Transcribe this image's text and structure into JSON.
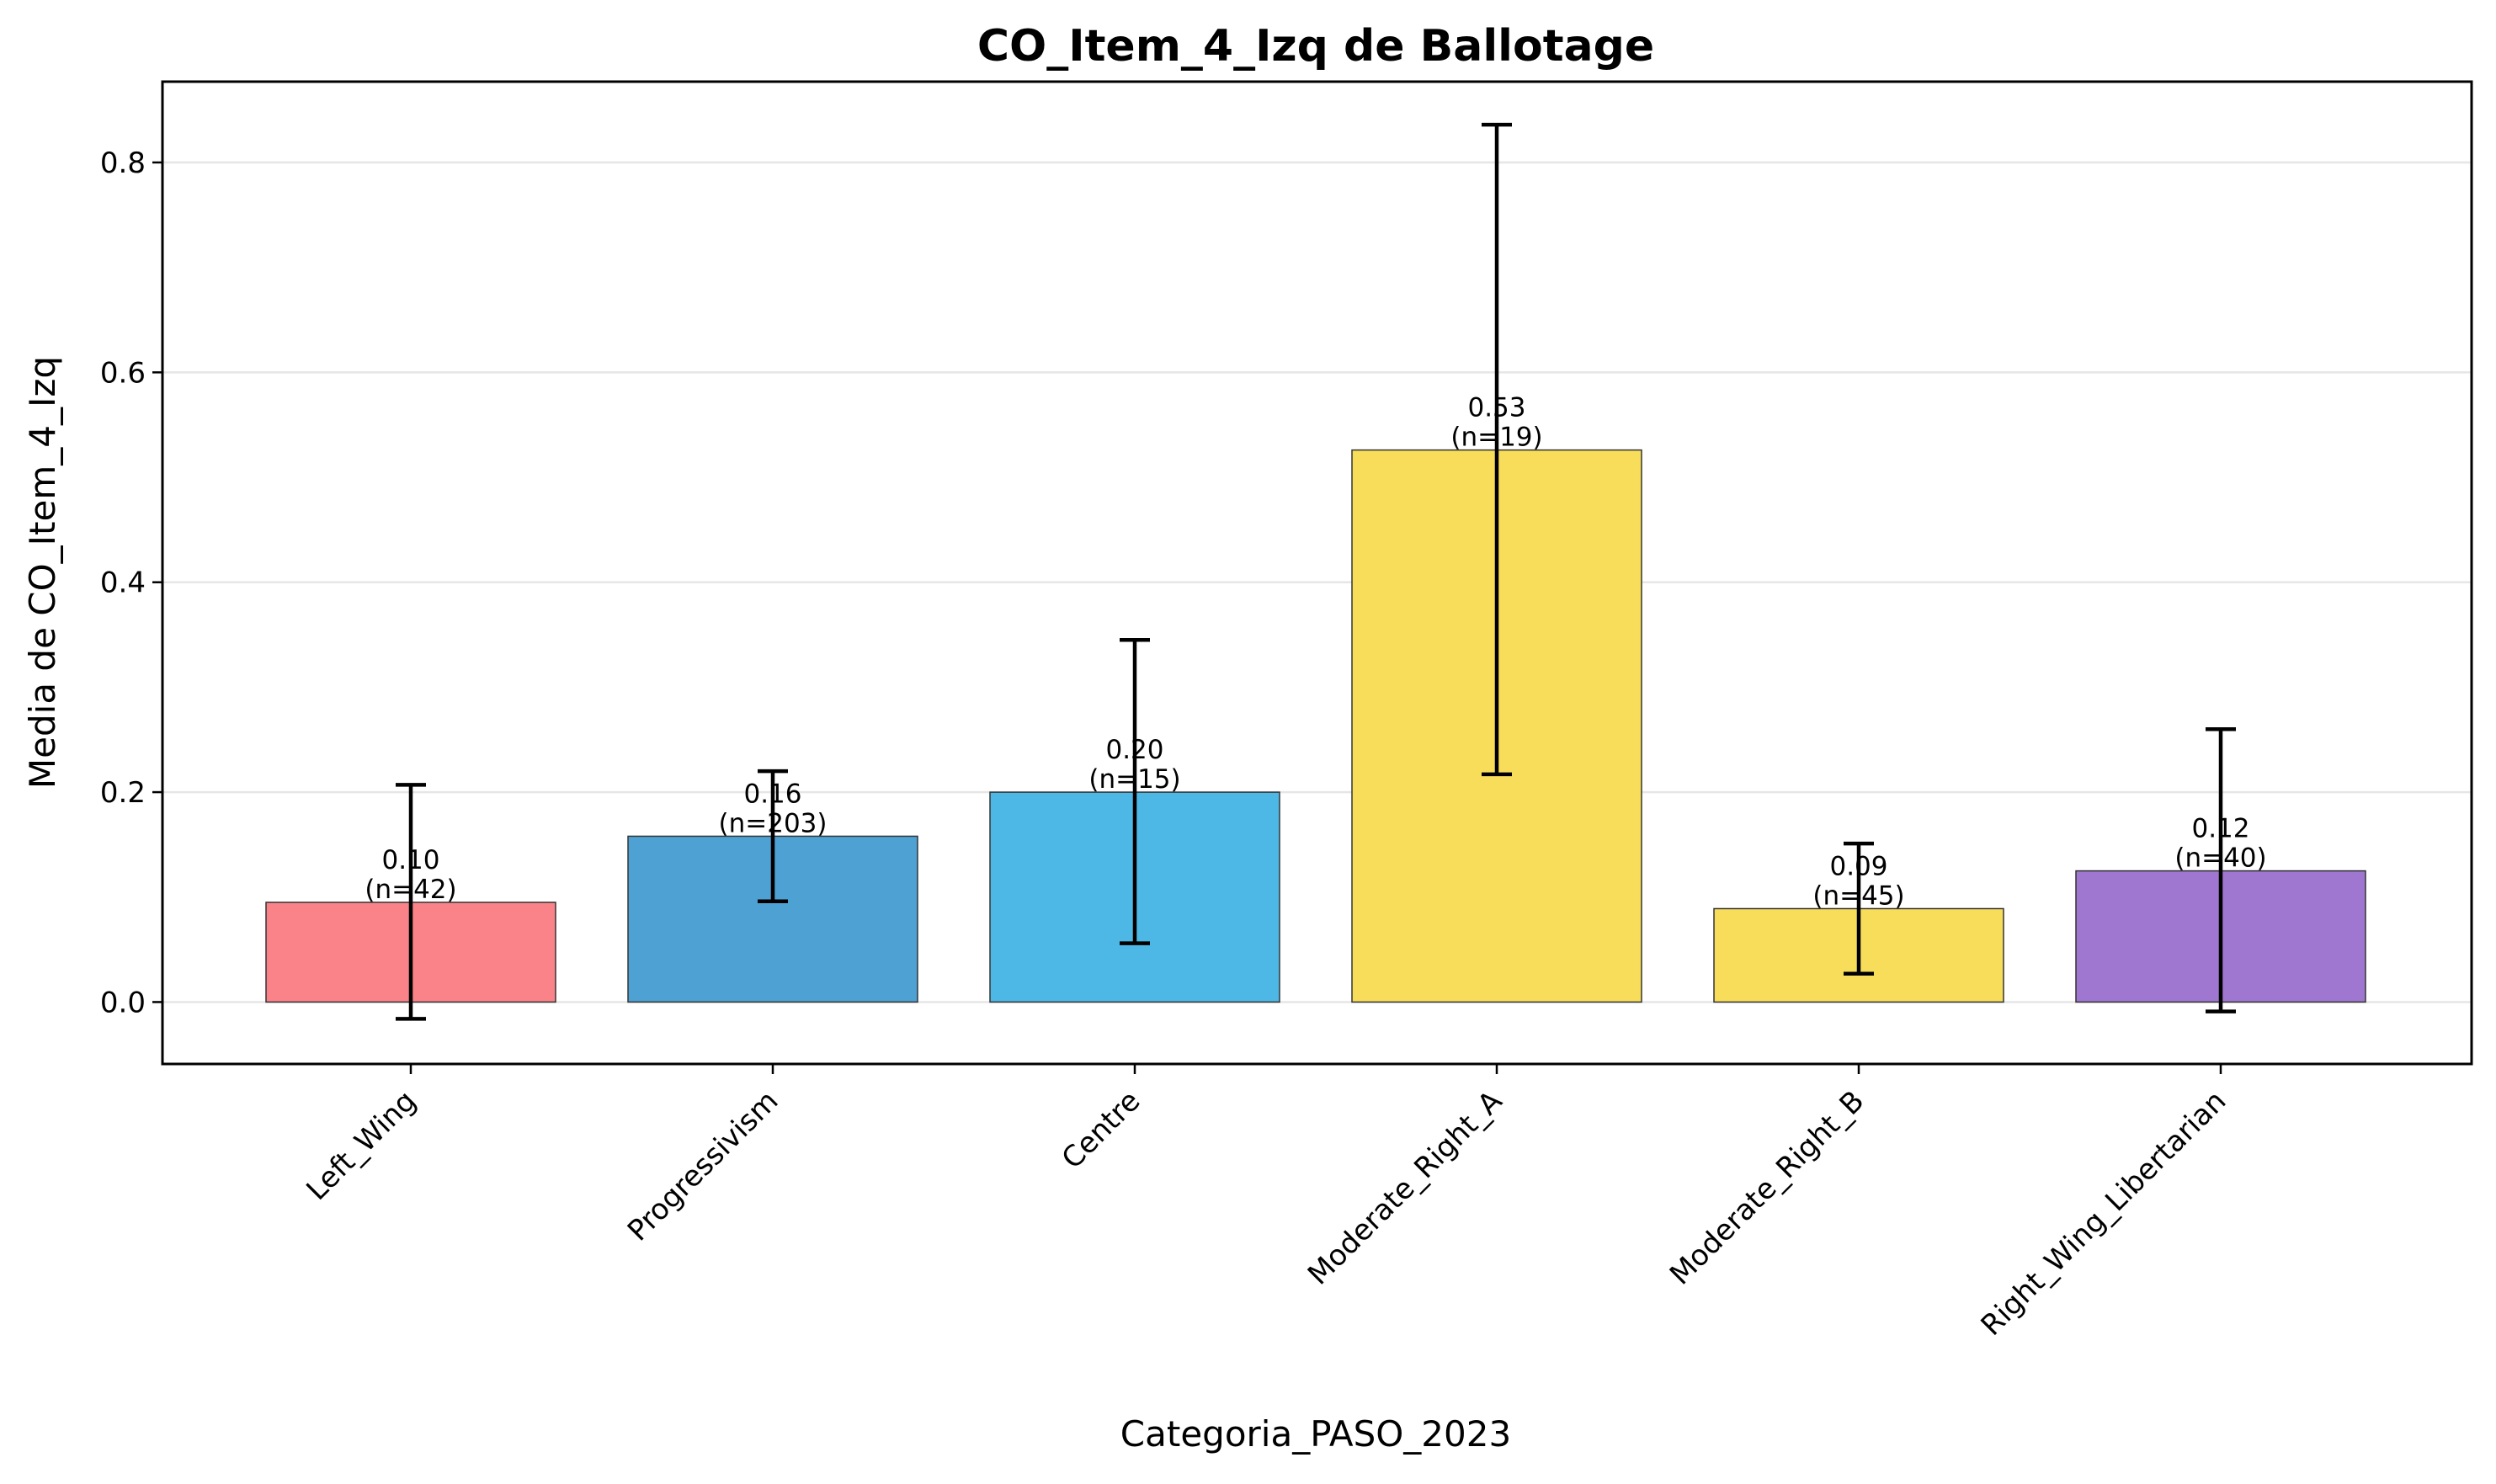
{
  "chart_data": {
    "type": "bar",
    "title": "CO_Item_4_Izq de Ballotage",
    "xlabel": "Categoria_PASO_2023",
    "ylabel": "Media de CO_Item_4_Izq",
    "ylim": [
      -0.059,
      0.877
    ],
    "yticks": [
      0.0,
      0.2,
      0.4,
      0.6,
      0.8
    ],
    "ytick_labels": [
      "0.0",
      "0.2",
      "0.4",
      "0.6",
      "0.8"
    ],
    "grid": "y",
    "categories": [
      "Left_Wing",
      "Progressivism",
      "Centre",
      "Moderate_Right_A",
      "Moderate_Right_B",
      "Right_Wing_Libertarian"
    ],
    "values": [
      0.095,
      0.158,
      0.2,
      0.526,
      0.089,
      0.125
    ],
    "error_low": [
      -0.016,
      0.096,
      0.056,
      0.217,
      0.027,
      -0.009
    ],
    "error_high": [
      0.207,
      0.22,
      0.345,
      0.836,
      0.151,
      0.26
    ],
    "value_labels": [
      "0.10",
      "0.16",
      "0.20",
      "0.53",
      "0.09",
      "0.12"
    ],
    "n_labels": [
      "(n=42)",
      "(n=203)",
      "(n=15)",
      "(n=19)",
      "(n=45)",
      "(n=40)"
    ],
    "colors": [
      "#fa8389",
      "#4ea1d3",
      "#4db8e5",
      "#f8dd5b",
      "#f8dd5b",
      "#a077d0"
    ]
  }
}
